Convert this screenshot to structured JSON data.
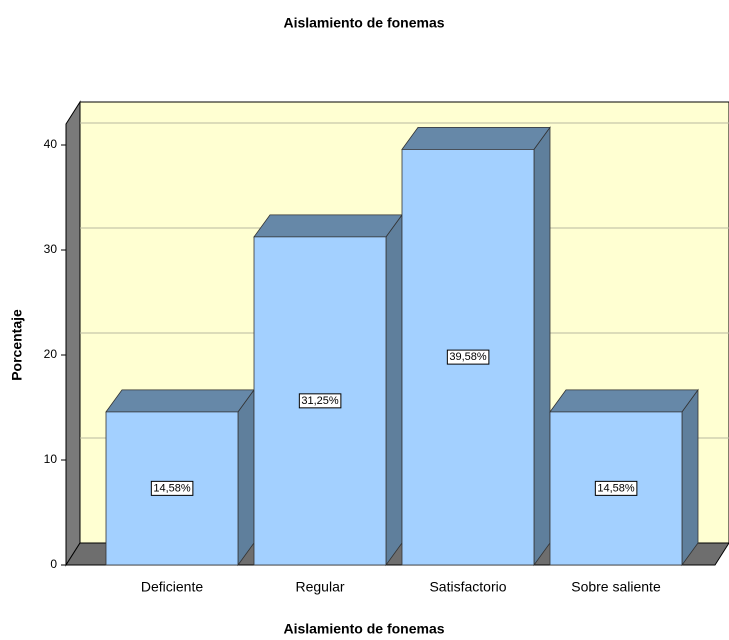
{
  "chart_data": {
    "type": "bar",
    "title": "Aislamiento de fonemas",
    "x_label": "Aislamiento de fonemas",
    "y_label": "Porcentaje",
    "categories": [
      "Deficiente",
      "Regular",
      "Satisfactorio",
      "Sobre saliente"
    ],
    "values": [
      14.58,
      31.25,
      39.58,
      14.58
    ],
    "value_labels": [
      "14,58%",
      "31,25%",
      "39,58%",
      "14,58%"
    ],
    "color": "#a3d0ff",
    "ylim": [
      0,
      42
    ],
    "yticks": [
      0,
      10,
      20,
      30,
      40
    ],
    "grid": true
  }
}
